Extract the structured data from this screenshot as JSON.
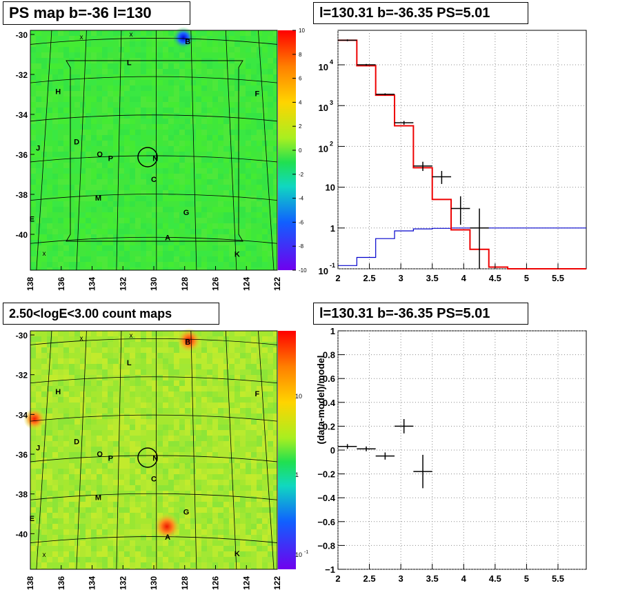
{
  "panels": {
    "top_left_title": "PS map b=-36 l=130",
    "top_right_title": "l=130.31 b=-36.35 PS=5.01",
    "bottom_left_title": "2.50<logE<3.00 count maps",
    "bottom_right_title": "l=130.31 b=-36.35 PS=5.01"
  },
  "colors": {
    "map_green": "#3ee83a",
    "map_yellow": "#c8ec30",
    "model_red": "#ee0000",
    "background_blue": "#0000cc",
    "data_black": "#000000"
  },
  "chart_data": [
    {
      "type": "heatmap",
      "title": "PS map b=-36 l=130",
      "x_ticks": [
        "138",
        "136",
        "134",
        "132",
        "130",
        "128",
        "126",
        "124",
        "122"
      ],
      "y_ticks": [
        "-30",
        "-32",
        "-34",
        "-36",
        "-38",
        "-40"
      ],
      "colorbar_ticks": [
        "10",
        "8",
        "6",
        "4",
        "2",
        "0",
        "-2",
        "-4",
        "-6",
        "-8",
        "-10"
      ],
      "colorbar_range": [
        -10,
        10
      ],
      "source_labels": [
        {
          "name": "B",
          "l": 127.8,
          "b": -30.2
        },
        {
          "name": "L",
          "l": 131.6,
          "b": -31.2
        },
        {
          "name": "H",
          "l": 136.2,
          "b": -32.6
        },
        {
          "name": "F",
          "l": 123.3,
          "b": -32.7
        },
        {
          "name": "D",
          "l": 135.0,
          "b": -35.0
        },
        {
          "name": "J",
          "l": 137.5,
          "b": -35.3
        },
        {
          "name": "O",
          "l": 133.5,
          "b": -35.6
        },
        {
          "name": "P",
          "l": 132.8,
          "b": -35.8
        },
        {
          "name": "N",
          "l": 129.9,
          "b": -35.8
        },
        {
          "name": "C",
          "l": 130.0,
          "b": -36.8
        },
        {
          "name": "M",
          "l": 133.6,
          "b": -37.7
        },
        {
          "name": "G",
          "l": 127.9,
          "b": -38.4
        },
        {
          "name": "E",
          "l": 137.9,
          "b": -38.7
        },
        {
          "name": "A",
          "l": 129.1,
          "b": -39.6
        },
        {
          "name": "K",
          "l": 124.6,
          "b": -40.4
        }
      ],
      "marker_label": "x"
    },
    {
      "type": "line",
      "title": "l=130.31 b=-36.35 PS=5.01",
      "x_ticks": [
        "2",
        "2.5",
        "3",
        "3.5",
        "4",
        "4.5",
        "5",
        "5.5"
      ],
      "y_ticks": [
        "10",
        "1",
        "10"
      ],
      "y_tick_exps": [
        "4",
        "3",
        "2",
        "-1"
      ],
      "xlim": [
        2.0,
        5.95
      ],
      "ylim": [
        0.1,
        70000
      ],
      "yscale": "log",
      "grid": true,
      "bin_edges": [
        2.0,
        2.3,
        2.6,
        2.9,
        3.2,
        3.5,
        3.8,
        4.1,
        4.4,
        4.7,
        5.0,
        5.3,
        5.6,
        5.95
      ],
      "series": [
        {
          "values": [
            40000,
            9500,
            1800,
            320,
            30,
            5,
            0.9,
            0.3,
            0.11,
            0.1,
            0.1,
            0.1,
            0.1
          ]
        },
        {
          "values": [
            0.12,
            0.19,
            0.55,
            0.85,
            0.95,
            0.98,
            1.0,
            1.0,
            1.0,
            1.0,
            1.0,
            1.0,
            1.0
          ]
        }
      ],
      "data_points": [
        {
          "x": 2.15,
          "y": 40000,
          "ylo": 38000,
          "yhi": 42000
        },
        {
          "x": 2.45,
          "y": 10000,
          "ylo": 9500,
          "yhi": 10500
        },
        {
          "x": 2.75,
          "y": 1900,
          "ylo": 1800,
          "yhi": 2000
        },
        {
          "x": 3.05,
          "y": 380,
          "ylo": 340,
          "yhi": 420
        },
        {
          "x": 3.35,
          "y": 33,
          "ylo": 25,
          "yhi": 42
        },
        {
          "x": 3.65,
          "y": 18,
          "ylo": 12,
          "yhi": 25
        },
        {
          "x": 3.95,
          "y": 3,
          "ylo": 1.2,
          "yhi": 6
        },
        {
          "x": 4.25,
          "y": 1,
          "ylo": 0.1,
          "yhi": 3
        }
      ]
    },
    {
      "type": "heatmap",
      "title": "2.50<logE<3.00 count maps",
      "x_ticks": [
        "138",
        "136",
        "134",
        "132",
        "130",
        "128",
        "126",
        "124",
        "122"
      ],
      "y_ticks": [
        "-30",
        "-32",
        "-34",
        "-36",
        "-38",
        "-40"
      ],
      "colorbar_ticks": [
        "10",
        "1",
        "10"
      ],
      "colorbar_tick_exps": [
        "-1"
      ],
      "colorbar_scale": "log",
      "marker_label": "x"
    },
    {
      "type": "scatter",
      "title": "l=130.31 b=-36.35 PS=5.01",
      "ylabel": "(data-model)/model",
      "x_ticks": [
        "2",
        "2.5",
        "3",
        "3.5",
        "4",
        "4.5",
        "5",
        "5.5"
      ],
      "y_ticks": [
        "1",
        "0.8",
        "0.6",
        "0.4",
        "0.2",
        "0",
        "−0.2",
        "−0.4",
        "−0.6",
        "−0.8",
        "−1"
      ],
      "xlim": [
        2.0,
        5.95
      ],
      "ylim": [
        -1,
        1
      ],
      "grid": true,
      "points": [
        {
          "x": 2.15,
          "y": 0.03,
          "xerr": 0.15,
          "yerr": 0.02
        },
        {
          "x": 2.45,
          "y": 0.01,
          "xerr": 0.15,
          "yerr": 0.02
        },
        {
          "x": 2.75,
          "y": -0.05,
          "xerr": 0.15,
          "yerr": 0.03
        },
        {
          "x": 3.05,
          "y": 0.2,
          "xerr": 0.15,
          "yerr": 0.06
        },
        {
          "x": 3.35,
          "y": -0.18,
          "xerr": 0.15,
          "yerr": 0.14
        }
      ]
    }
  ]
}
